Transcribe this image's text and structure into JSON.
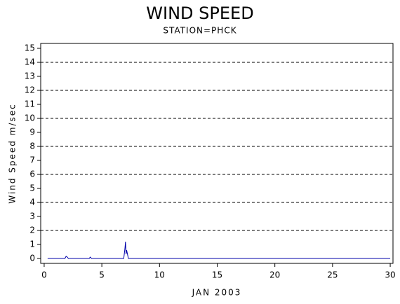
{
  "chart_data": {
    "type": "line",
    "title": "WIND SPEED",
    "subtitle": "STATION=PHCK",
    "x_label": "JAN 2003",
    "y_label": "Wind Speed m/sec",
    "x": [
      0.3,
      1.8,
      1.9,
      2.0,
      2.1,
      3.9,
      4.0,
      4.1,
      6.9,
      7.0,
      7.05,
      7.1,
      7.15,
      7.2,
      7.3,
      30
    ],
    "series": [
      {
        "color": "#0000aa",
        "values": [
          0,
          0,
          0.15,
          0.1,
          0,
          0,
          0.1,
          0,
          0,
          0.7,
          1.2,
          0.3,
          0.6,
          0.4,
          0,
          0
        ]
      }
    ],
    "xlim": [
      -0.3,
      30.24
    ],
    "xticks": [
      0,
      5,
      10,
      15,
      20,
      25,
      30
    ],
    "ylim": [
      -0.35,
      15.35
    ],
    "yticks": [
      0,
      1,
      2,
      3,
      4,
      5,
      6,
      7,
      8,
      9,
      10,
      11,
      12,
      13,
      14,
      15
    ],
    "grid_lines": [
      2,
      4,
      6,
      8,
      10,
      12,
      14
    ]
  }
}
